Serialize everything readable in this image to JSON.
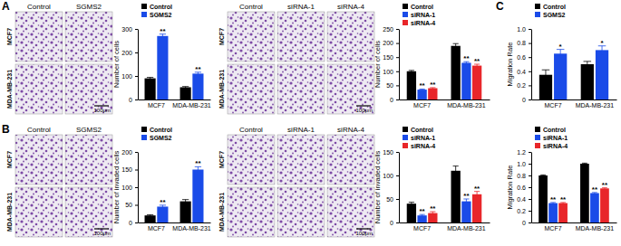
{
  "figure": {
    "panel_letters": [
      "A",
      "B",
      "C"
    ],
    "image_grids": [
      {
        "columns": [
          "Control",
          "SGMS2"
        ],
        "rows": [
          "MCF7",
          "MDA-MB-231"
        ],
        "scale_bar": "100μm"
      },
      {
        "columns": [
          "Control",
          "siRNA-1",
          "siRNA-4"
        ],
        "rows": [
          "MCF7",
          "MDA-MB-231"
        ],
        "scale_bar": "100μm"
      },
      {
        "columns": [
          "Control",
          "SGMS2"
        ],
        "rows": [
          "MCF7",
          "MDA-MB-231"
        ],
        "scale_bar": "100μm"
      },
      {
        "columns": [
          "Control",
          "siRNA-1",
          "siRNA-4"
        ],
        "rows": [
          "MCF7",
          "MDA-MB-231"
        ],
        "scale_bar": "100μm"
      }
    ]
  },
  "chart_data": [
    {
      "type": "bar",
      "y_label": "Number of cells",
      "categories": [
        "MCF7",
        "MDA-MB-231"
      ],
      "ylim": [
        0,
        300
      ],
      "yticks": [
        0,
        100,
        200,
        300
      ],
      "legend": "upper left",
      "series": [
        {
          "name": "Control",
          "color": "#000000",
          "values": [
            90,
            52
          ],
          "errors": [
            4,
            3
          ],
          "significance": [
            null,
            null
          ]
        },
        {
          "name": "SGMS2",
          "color": "#1a4be8",
          "values": [
            270,
            110
          ],
          "errors": [
            8,
            6
          ],
          "significance": [
            "**",
            "**"
          ]
        }
      ]
    },
    {
      "type": "bar",
      "y_label": "Number of cells",
      "categories": [
        "MCF7",
        "MDA-MB-231"
      ],
      "ylim": [
        0,
        250
      ],
      "yticks": [
        0,
        50,
        100,
        150,
        200,
        250
      ],
      "legend": "upper left",
      "series": [
        {
          "name": "Control",
          "color": "#000000",
          "values": [
            100,
            190
          ],
          "errors": [
            3,
            8
          ],
          "significance": [
            null,
            null
          ]
        },
        {
          "name": "siRNA-1",
          "color": "#1a4be8",
          "values": [
            35,
            130
          ],
          "errors": [
            2,
            4
          ],
          "significance": [
            "**",
            "**"
          ]
        },
        {
          "name": "siRNA-4",
          "color": "#e8262a",
          "values": [
            40,
            120
          ],
          "errors": [
            2,
            5
          ],
          "significance": [
            "**",
            "**"
          ]
        }
      ]
    },
    {
      "type": "bar",
      "y_label": "Migration Rate",
      "categories": [
        "MCF7",
        "MDA-MB-231"
      ],
      "ylim": [
        0,
        1
      ],
      "yticks": [
        0,
        0.2,
        0.4,
        0.6,
        0.8,
        {
          "value": 1,
          "label": "1.0"
        }
      ],
      "legend": "upper left",
      "series": [
        {
          "name": "Control",
          "color": "#000000",
          "values": [
            0.35,
            0.5
          ],
          "errors": [
            0.07,
            0.04
          ],
          "significance": [
            null,
            null
          ]
        },
        {
          "name": "SGMS2",
          "color": "#1a4be8",
          "values": [
            0.65,
            0.7
          ],
          "errors": [
            0.06,
            0.06
          ],
          "significance": [
            "*",
            "*"
          ]
        }
      ]
    },
    {
      "type": "bar",
      "y_label": "Number of invaded cells",
      "categories": [
        "MCF7",
        "MDA-MB-231"
      ],
      "ylim": [
        0,
        200
      ],
      "yticks": [
        0,
        50,
        100,
        150,
        200
      ],
      "legend": "upper left",
      "series": [
        {
          "name": "Control",
          "color": "#000000",
          "values": [
            20,
            60
          ],
          "errors": [
            2,
            5
          ],
          "significance": [
            null,
            null
          ]
        },
        {
          "name": "SGMS2",
          "color": "#1a4be8",
          "values": [
            45,
            150
          ],
          "errors": [
            4,
            8
          ],
          "significance": [
            "**",
            "**"
          ]
        }
      ]
    },
    {
      "type": "bar",
      "y_label": "Number of invaded cells",
      "categories": [
        "MCF7",
        "MDA-MB-231"
      ],
      "ylim": [
        0,
        150
      ],
      "yticks": [
        0,
        50,
        100,
        150
      ],
      "legend": "upper left",
      "series": [
        {
          "name": "Control",
          "color": "#000000",
          "values": [
            40,
            110
          ],
          "errors": [
            3,
            10
          ],
          "significance": [
            null,
            null
          ]
        },
        {
          "name": "siRNA-1",
          "color": "#1a4be8",
          "values": [
            15,
            45
          ],
          "errors": [
            2,
            5
          ],
          "significance": [
            "**",
            "**"
          ]
        },
        {
          "name": "siRNA-4",
          "color": "#e8262a",
          "values": [
            20,
            60
          ],
          "errors": [
            3,
            6
          ],
          "significance": [
            "**",
            "**"
          ]
        }
      ]
    },
    {
      "type": "bar",
      "y_label": "Migration Rate",
      "categories": [
        "MCF7",
        "MDA-MB-231"
      ],
      "ylim": [
        0,
        1.2
      ],
      "yticks": [
        0,
        0.2,
        0.4,
        0.6,
        0.8,
        {
          "value": 1,
          "label": "1.0"
        },
        1.2
      ],
      "legend": "upper left",
      "series": [
        {
          "name": "Control",
          "color": "#000000",
          "values": [
            0.8,
            1.0
          ],
          "errors": [
            0.01,
            0.01
          ],
          "significance": [
            null,
            null
          ]
        },
        {
          "name": "siRNA-1",
          "color": "#1a4be8",
          "values": [
            0.33,
            0.5
          ],
          "errors": [
            0.01,
            0.01
          ],
          "significance": [
            "**",
            "**"
          ]
        },
        {
          "name": "siRNA-4",
          "color": "#e8262a",
          "values": [
            0.33,
            0.58
          ],
          "errors": [
            0.01,
            0.01
          ],
          "significance": [
            "**",
            "**"
          ]
        }
      ]
    }
  ]
}
